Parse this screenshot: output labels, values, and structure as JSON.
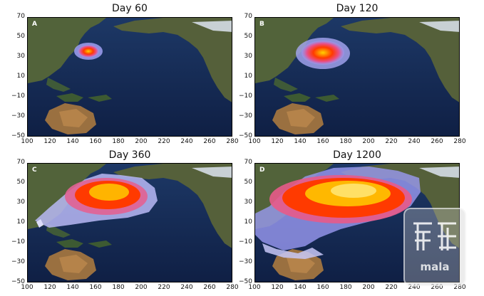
{
  "panels": [
    {
      "title": "Day 60",
      "letter": "A",
      "plume_level": 1
    },
    {
      "title": "Day 120",
      "letter": "B",
      "plume_level": 2
    },
    {
      "title": "Day 360",
      "letter": "C",
      "plume_level": 3
    },
    {
      "title": "Day 1200",
      "letter": "D",
      "plume_level": 4
    }
  ],
  "axes": {
    "x_ticks": [
      "100",
      "120",
      "140",
      "160",
      "180",
      "200",
      "220",
      "240",
      "260",
      "280"
    ],
    "y_ticks": [
      "70",
      "50",
      "30",
      "10",
      "−10",
      "−30",
      "−50"
    ],
    "xlim": [
      100,
      280
    ],
    "ylim": [
      -50,
      70
    ]
  },
  "watermark": {
    "text": "mala"
  },
  "colors": {
    "ocean": "#162a52",
    "land": "#4a5a34",
    "plume_core": "#ffcc00",
    "plume_mid": "#ff2a00",
    "plume_edge": "#8c8cf0"
  }
}
